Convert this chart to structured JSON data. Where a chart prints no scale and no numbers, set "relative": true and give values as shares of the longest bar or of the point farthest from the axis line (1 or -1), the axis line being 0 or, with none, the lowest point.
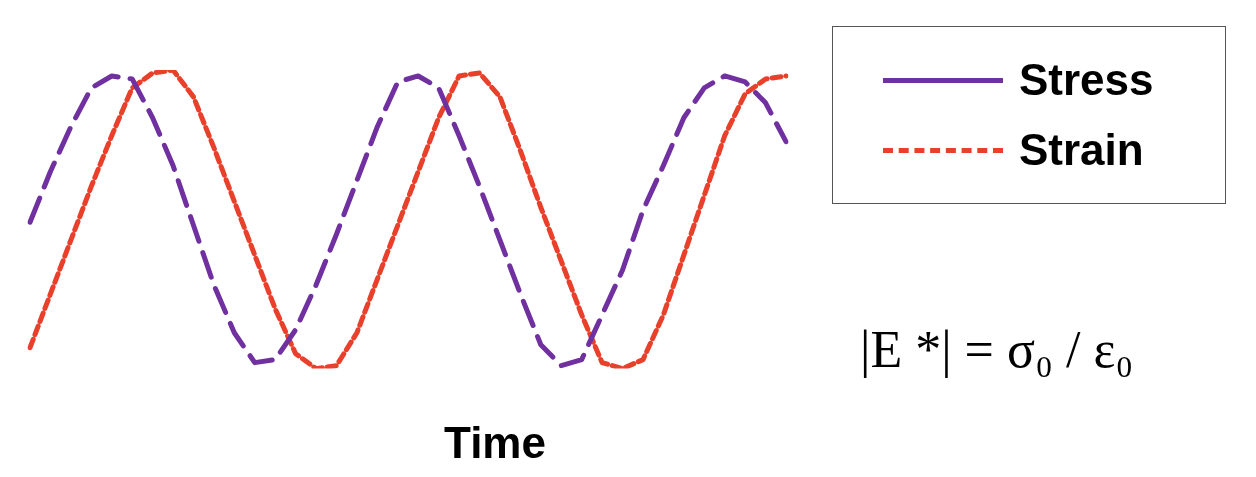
{
  "chart_data": {
    "type": "line",
    "relative": true,
    "xlabel": "Time",
    "legend": "top right",
    "grid": false,
    "line_style": "dashed",
    "marker": "none",
    "categories": [
      null,
      null,
      null,
      null,
      null,
      null,
      null,
      null,
      null,
      null,
      null,
      null,
      null,
      null,
      null,
      null,
      null,
      null,
      null,
      null,
      null,
      null,
      null,
      null,
      null,
      null,
      null,
      null,
      null,
      null,
      null,
      null,
      null,
      null,
      null,
      null,
      null,
      null
    ],
    "series": [
      {
        "name": "Stress",
        "color": "#7030a0",
        "values": [
          0.49,
          0.66,
          0.81,
          0.94,
          0.98,
          0.97,
          0.84,
          0.68,
          0.48,
          0.28,
          0.12,
          0.02,
          0.03,
          0.13,
          0.28,
          0.45,
          0.63,
          0.81,
          0.96,
          0.98,
          0.94,
          0.78,
          0.61,
          0.43,
          0.25,
          0.08,
          0.01,
          0.03,
          0.18,
          0.33,
          0.53,
          0.68,
          0.84,
          0.94,
          0.98,
          0.96,
          0.89,
          0.76
        ]
      },
      {
        "name": "Strain",
        "color": "#e8402a",
        "values": [
          0.07,
          0.25,
          0.43,
          0.61,
          0.78,
          0.94,
          0.99,
          1,
          0.91,
          0.74,
          0.56,
          0.38,
          0.2,
          0.05,
          0,
          0.01,
          0.12,
          0.3,
          0.48,
          0.66,
          0.84,
          0.98,
          0.99,
          0.91,
          0.73,
          0.54,
          0.36,
          0.18,
          0.02,
          0,
          0.03,
          0.18,
          0.38,
          0.58,
          0.78,
          0.92,
          0.97,
          0.98
        ]
      }
    ],
    "annotations": [
      "|E *| = σ₀ / ε₀"
    ]
  }
}
